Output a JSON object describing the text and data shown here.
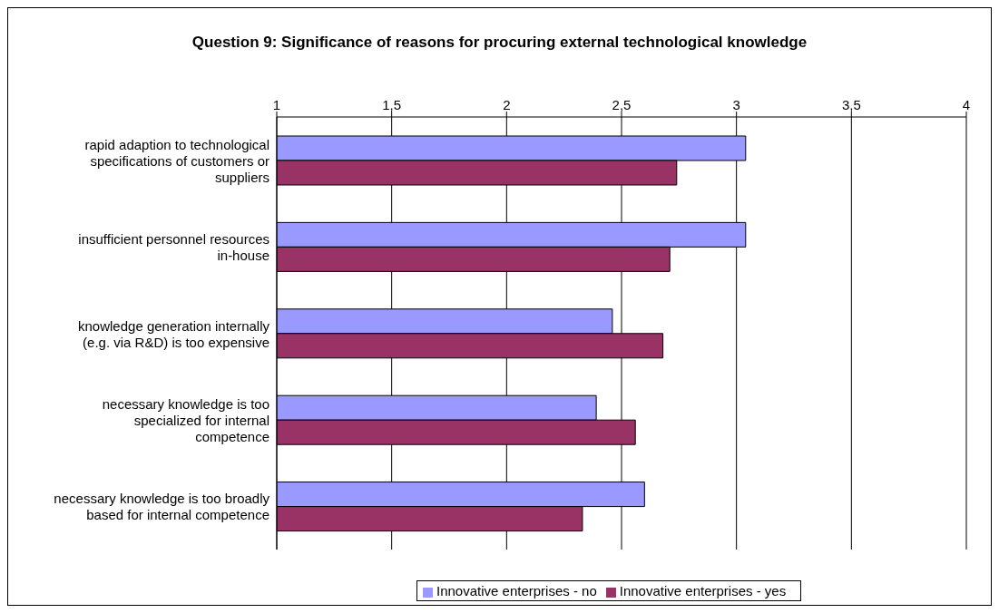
{
  "chart_data": {
    "type": "bar",
    "orientation": "horizontal",
    "title": "Question 9: Significance of reasons for procuring external technological knowledge",
    "categories": [
      "rapid adaption to technological specifications of customers or suppliers",
      "insufficient personnel resources in-house",
      "knowledge generation internally (e.g. via R&D) is too expensive",
      "necessary knowledge is too specialized for internal competence",
      "necessary knowledge is too broadly based for internal competence"
    ],
    "series": [
      {
        "name": "Innovative enterprises - no",
        "color": "#9999ff",
        "values": [
          3.04,
          3.04,
          2.46,
          2.39,
          2.6
        ]
      },
      {
        "name": "Innovative enterprises - yes",
        "color": "#993366",
        "values": [
          2.74,
          2.71,
          2.68,
          2.56,
          2.33
        ]
      }
    ],
    "xlim": [
      1,
      4
    ],
    "xticks": [
      1,
      {
        "value": 1.5,
        "label": "1,5"
      },
      2,
      {
        "value": 2.5,
        "label": "2,5"
      },
      3,
      {
        "value": 3.5,
        "label": "3,5"
      },
      4
    ],
    "grid": "x",
    "legend": "bottom"
  }
}
